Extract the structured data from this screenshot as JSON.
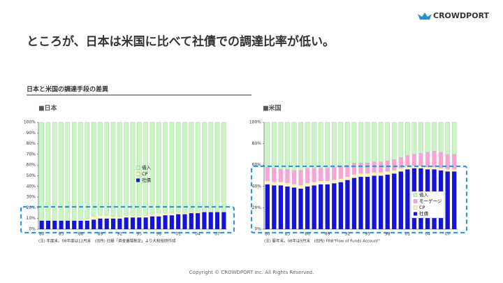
{
  "header": {
    "title": "ところが、日本は米国に比べて社債での調達比率が低い。",
    "logo": "CROWDPORT",
    "subtitle": "日本と米国の調達手段の差異",
    "footer": "Copyright © CROWDPORT Inc. All Rights Reserved."
  },
  "chart_data": [
    {
      "type": "bar",
      "stacked": true,
      "title": "■日本",
      "note": "(注) 年度末。08年度は12月末　(出所) 日銀「資金循環勘定」より大和総研作成",
      "categories": [
        "80",
        null,
        null,
        "83",
        null,
        null,
        "86",
        null,
        null,
        "89",
        null,
        null,
        "92",
        null,
        null,
        "95",
        null,
        null,
        "98",
        null,
        null,
        "01",
        null,
        null,
        "04",
        null,
        null,
        "07",
        null
      ],
      "series": [
        {
          "name": "社債",
          "color": "#1414d8",
          "values": [
            8,
            8,
            8,
            8,
            8,
            8,
            8,
            8,
            9,
            10,
            10,
            10,
            10,
            11,
            11,
            11,
            11,
            12,
            12,
            13,
            13,
            14,
            14,
            15,
            15,
            16,
            16,
            16,
            16
          ]
        },
        {
          "name": "CP",
          "color": "#fff7b0",
          "values": [
            0,
            0,
            0,
            0,
            0,
            0,
            1,
            2,
            3,
            3,
            3,
            2,
            2,
            2,
            2,
            2,
            2,
            2,
            3,
            2,
            2,
            2,
            1,
            1,
            1,
            1,
            1,
            1,
            1
          ]
        },
        {
          "name": "借入",
          "color": "#c9f6c2",
          "values": [
            92,
            92,
            92,
            92,
            92,
            92,
            91,
            90,
            88,
            87,
            87,
            88,
            88,
            87,
            87,
            87,
            87,
            86,
            85,
            85,
            85,
            84,
            85,
            84,
            84,
            83,
            83,
            83,
            83
          ]
        }
      ],
      "ylim": [
        0,
        100
      ],
      "yticks": [
        {
          "value": 0,
          "label": "0%"
        },
        {
          "value": 10,
          "label": "10%"
        },
        {
          "value": 20,
          "label": "20%"
        },
        {
          "value": 30,
          "label": "30%"
        },
        {
          "value": 40,
          "label": "40%"
        },
        {
          "value": 50,
          "label": "50%"
        },
        {
          "value": 60,
          "label": "60%"
        },
        {
          "value": 70,
          "label": "70%"
        },
        {
          "value": 80,
          "label": "80%"
        },
        {
          "value": 90,
          "label": "90%"
        },
        {
          "value": 100,
          "label": "100%"
        }
      ]
    },
    {
      "type": "bar",
      "stacked": true,
      "title": "■米国",
      "note": "(注) 暦年末。08年は9月末　(出所) FRB\"Flow of Funds Account\"",
      "categories": [
        "80",
        null,
        null,
        "83",
        null,
        null,
        "86",
        null,
        null,
        "89",
        null,
        null,
        "92",
        null,
        null,
        "95",
        null,
        null,
        "98",
        null,
        null,
        "01",
        null,
        null,
        "04",
        null,
        null,
        "07",
        null
      ],
      "series": [
        {
          "name": "社債",
          "color": "#1414d8",
          "values": [
            42,
            41,
            41,
            40,
            39,
            38,
            40,
            41,
            42,
            42,
            43,
            44,
            46,
            48,
            49,
            49,
            50,
            50,
            51,
            52,
            54,
            56,
            57,
            57,
            56,
            56,
            55,
            54,
            54
          ]
        },
        {
          "name": "CP",
          "color": "#fff7b0",
          "values": [
            3,
            3,
            3,
            3,
            3,
            3,
            3,
            3,
            3,
            3,
            3,
            3,
            3,
            3,
            3,
            3,
            3,
            3,
            3,
            3,
            3,
            3,
            2,
            2,
            2,
            2,
            2,
            2,
            2
          ]
        },
        {
          "name": "モーゲージ",
          "color": "#f5a6d6",
          "values": [
            13,
            13,
            12,
            13,
            13,
            14,
            14,
            13,
            12,
            12,
            12,
            12,
            11,
            11,
            10,
            10,
            10,
            10,
            10,
            10,
            10,
            10,
            11,
            12,
            14,
            15,
            15,
            14,
            14
          ]
        },
        {
          "name": "借入",
          "color": "#c9f6c2",
          "values": [
            42,
            43,
            44,
            44,
            45,
            45,
            43,
            43,
            43,
            43,
            42,
            41,
            40,
            38,
            38,
            38,
            37,
            37,
            36,
            35,
            33,
            31,
            30,
            29,
            28,
            27,
            28,
            30,
            30
          ]
        }
      ],
      "ylim": [
        0,
        100
      ],
      "yticks": [
        {
          "value": 0,
          "label": "0%"
        },
        {
          "value": 20,
          "label": "20%"
        },
        {
          "value": 40,
          "label": "40%"
        },
        {
          "value": 60,
          "label": "60%"
        },
        {
          "value": 80,
          "label": "80%"
        },
        {
          "value": 100,
          "label": "100%"
        }
      ]
    }
  ]
}
